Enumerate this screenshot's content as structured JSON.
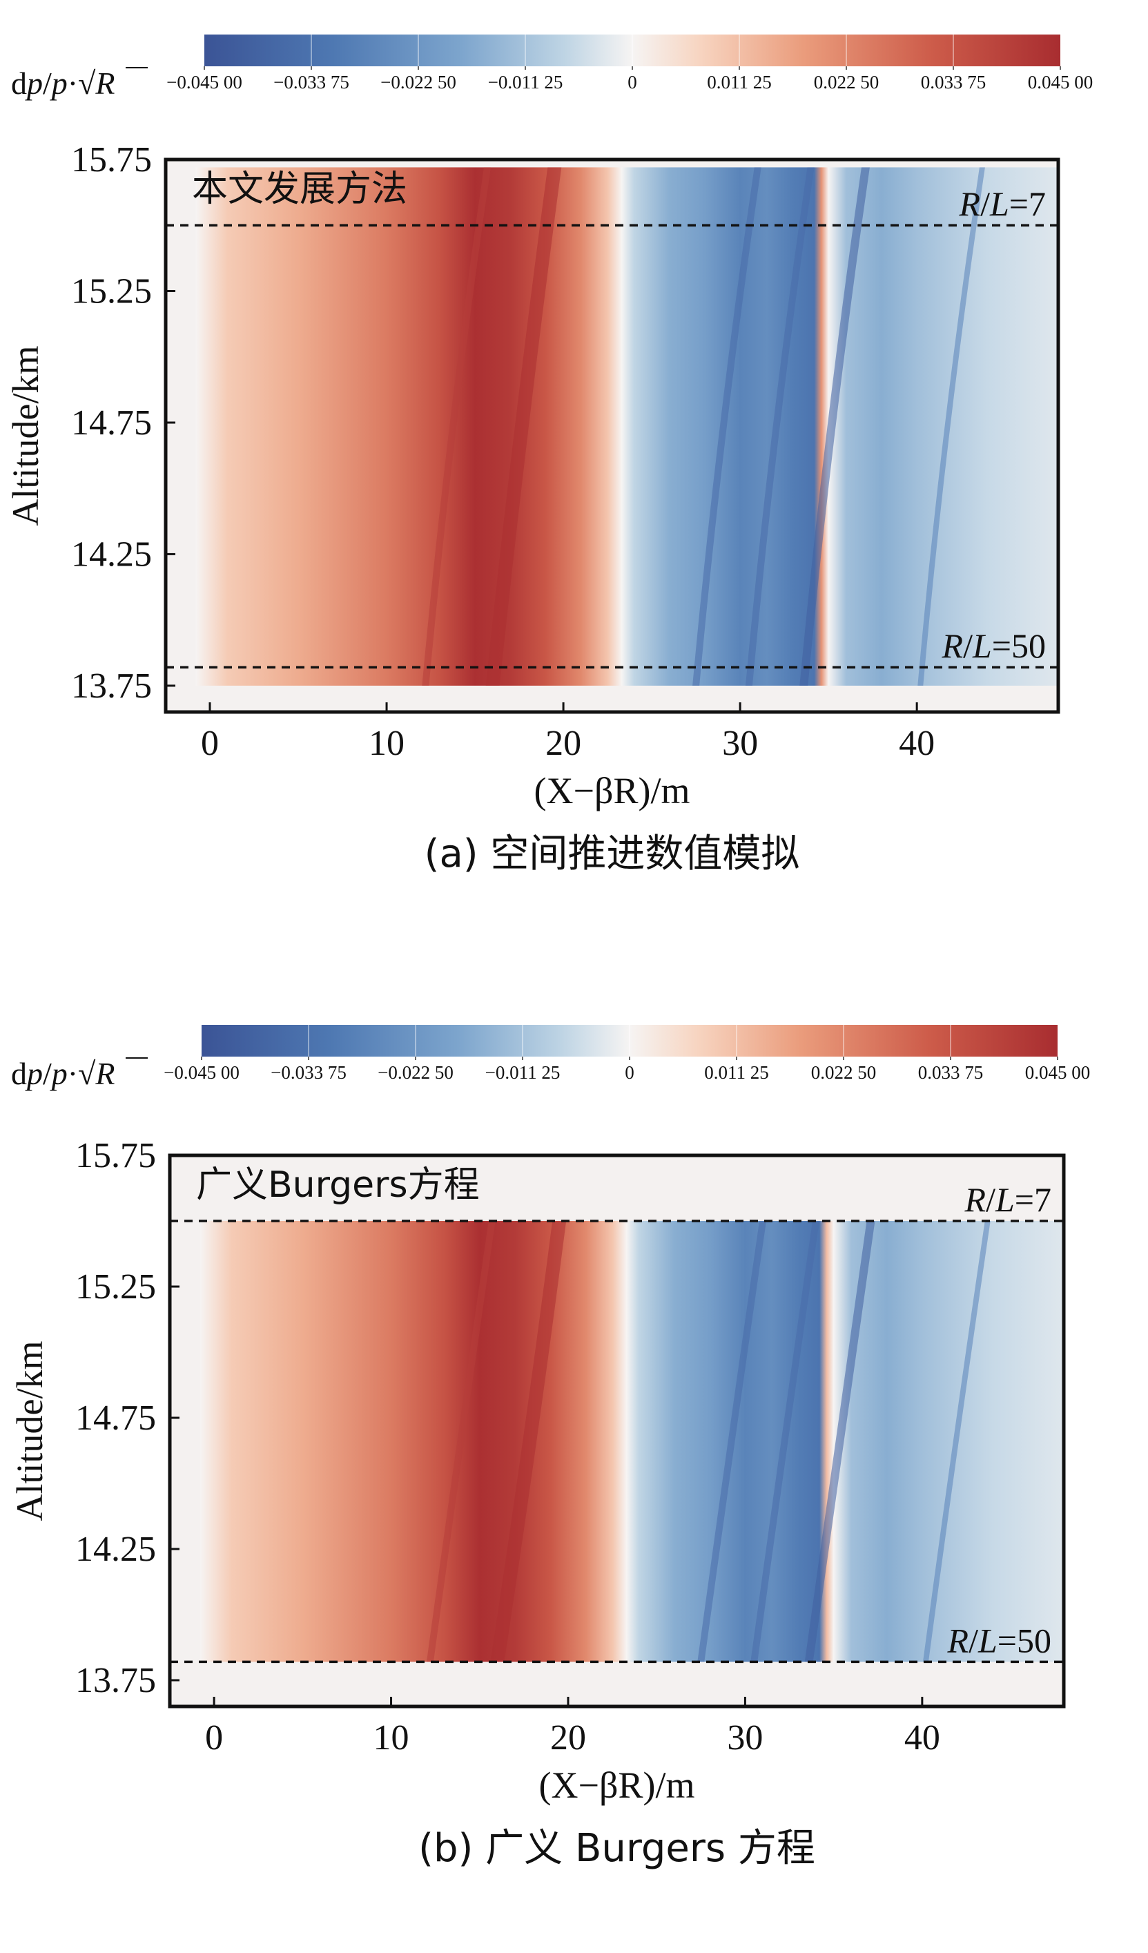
{
  "chart_data": [
    {
      "type": "heatmap",
      "panel_label": "a",
      "caption": "(a) 空间推进数值模拟",
      "in_plot_label": "本文发展方法",
      "colorbar": {
        "label_prefix": "d",
        "label_p1": "p",
        "label_slash": "/",
        "label_p2": "p",
        "label_dot": "·",
        "label_R": "R",
        "tick_labels": [
          "−0.045 00",
          "−0.033 75",
          "−0.022 50",
          "−0.011 25",
          "0",
          "0.011 25",
          "0.022 50",
          "0.033 75",
          "0.045 00"
        ],
        "range": [
          -0.045,
          0.045
        ],
        "colormap": "RdBu_r"
      },
      "xlabel": "(X−βR)/m",
      "ylabel": "Altitude/km",
      "xlim": [
        -2.5,
        48
      ],
      "ylim": [
        13.65,
        15.75
      ],
      "xticks": [
        0,
        10,
        20,
        30,
        40
      ],
      "xtick_labels": [
        "0",
        "10",
        "20",
        "30",
        "40"
      ],
      "yticks": [
        13.75,
        14.25,
        14.75,
        15.25,
        15.75
      ],
      "ytick_labels": [
        "13.75",
        "14.25",
        "14.75",
        "15.25",
        "15.75"
      ],
      "field_altitude_range": [
        13.75,
        15.72
      ],
      "reference_lines": [
        {
          "altitude": 15.5,
          "label": "R/L=7",
          "style": "dashed"
        },
        {
          "altitude": 13.82,
          "label": "R/L=50",
          "style": "dashed"
        }
      ],
      "field_description_pressure_profile": {
        "x": [
          -0.8,
          1,
          5,
          10,
          13,
          15,
          17,
          19,
          21,
          22.5,
          23.3,
          24,
          26,
          28,
          30,
          31.5,
          33,
          34.2,
          34.6,
          35,
          36,
          38,
          40,
          44,
          48
        ],
        "dp_at_R_L_50": [
          0,
          0.009,
          0.015,
          0.025,
          0.034,
          0.044,
          0.041,
          0.033,
          0.022,
          0.01,
          0,
          -0.007,
          -0.016,
          -0.02,
          -0.028,
          -0.025,
          -0.03,
          -0.033,
          0.02,
          0,
          -0.012,
          -0.016,
          -0.012,
          -0.006,
          -0.003
        ]
      }
    },
    {
      "type": "heatmap",
      "panel_label": "b",
      "caption": "(b) 广义 Burgers 方程",
      "in_plot_label": "广义Burgers方程",
      "colorbar": {
        "label_prefix": "d",
        "label_p1": "p",
        "label_slash": "/",
        "label_p2": "p",
        "label_dot": "·",
        "label_R": "R",
        "tick_labels": [
          "−0.045 00",
          "−0.033 75",
          "−0.022 50",
          "−0.011 25",
          "0",
          "0.011 25",
          "0.022 50",
          "0.033 75",
          "0.045 00"
        ],
        "range": [
          -0.045,
          0.045
        ],
        "colormap": "RdBu_r"
      },
      "xlabel": "(X−βR)/m",
      "ylabel": "Altitude/km",
      "xlim": [
        -2.5,
        48
      ],
      "ylim": [
        13.65,
        15.75
      ],
      "xticks": [
        0,
        10,
        20,
        30,
        40
      ],
      "xtick_labels": [
        "0",
        "10",
        "20",
        "30",
        "40"
      ],
      "yticks": [
        13.75,
        14.25,
        14.75,
        15.25,
        15.75
      ],
      "ytick_labels": [
        "13.75",
        "14.25",
        "14.75",
        "15.25",
        "15.75"
      ],
      "field_altitude_range": [
        13.82,
        15.5
      ],
      "reference_lines": [
        {
          "altitude": 15.5,
          "label": "R/L=7",
          "style": "dashed"
        },
        {
          "altitude": 13.82,
          "label": "R/L=50",
          "style": "dashed"
        }
      ],
      "field_description_pressure_profile": {
        "x": [
          -0.8,
          1,
          5,
          10,
          13,
          15,
          17,
          19,
          21,
          22.5,
          23.3,
          24,
          26,
          28,
          30,
          31.5,
          33,
          34.2,
          34.6,
          35,
          36,
          38,
          40,
          44,
          48
        ],
        "dp_at_R_L_50": [
          0,
          0.009,
          0.015,
          0.025,
          0.034,
          0.044,
          0.041,
          0.033,
          0.022,
          0.01,
          0,
          -0.007,
          -0.016,
          -0.02,
          -0.028,
          -0.025,
          -0.03,
          -0.033,
          0.012,
          0,
          -0.012,
          -0.016,
          -0.012,
          -0.006,
          -0.003
        ]
      }
    }
  ]
}
